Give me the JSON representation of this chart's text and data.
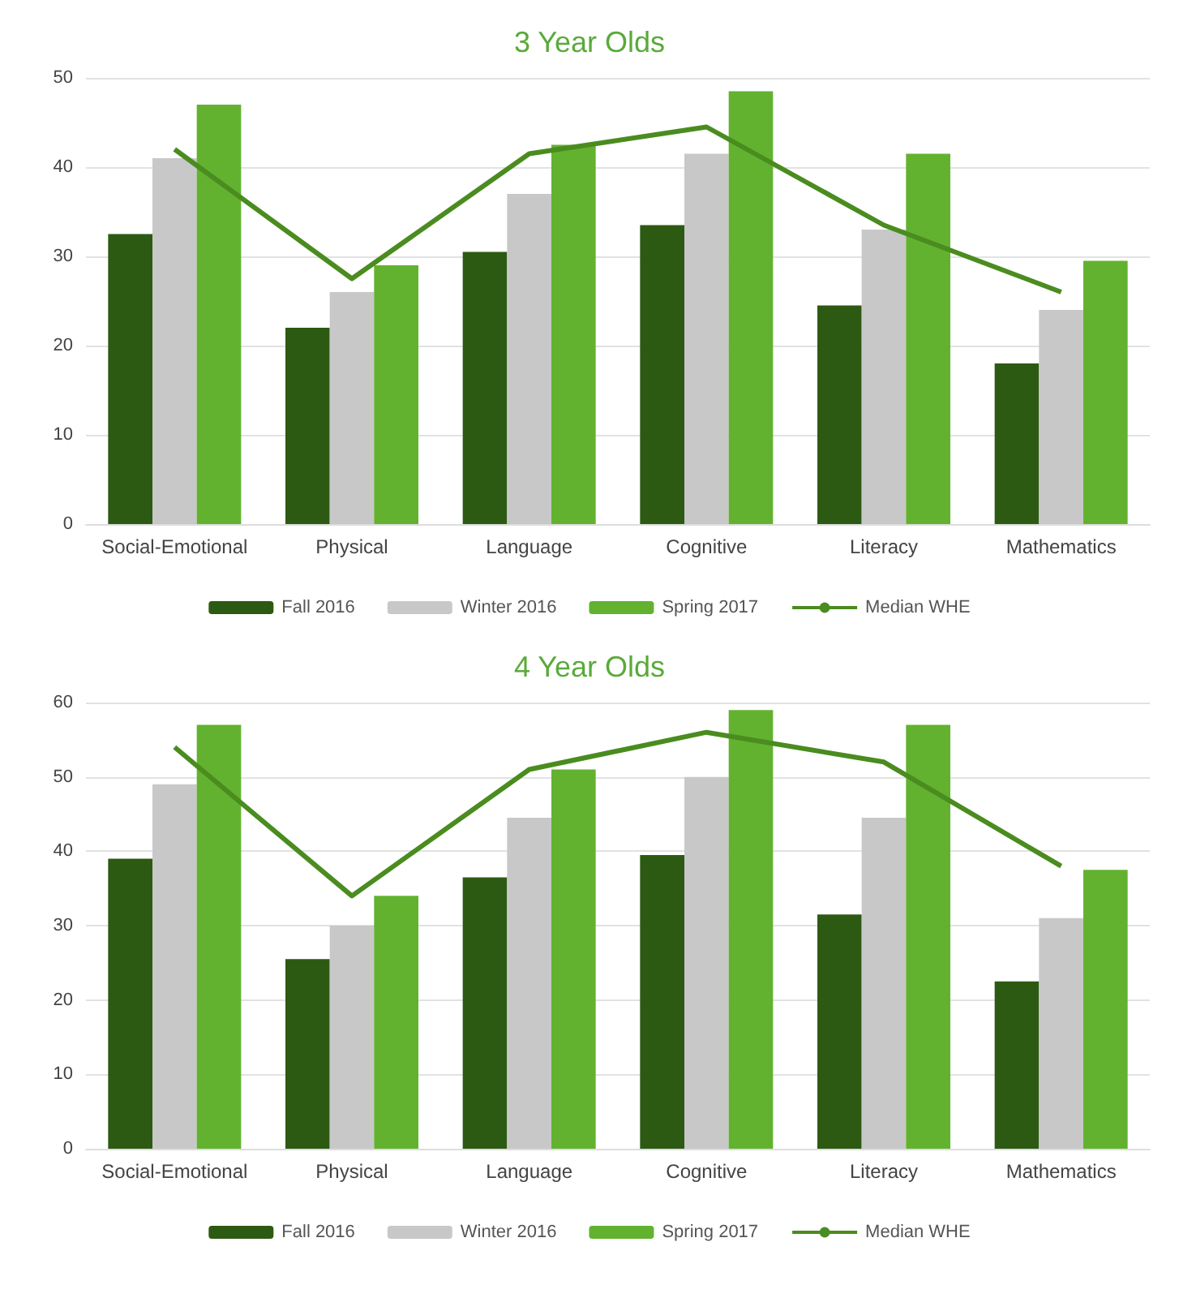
{
  "chart_data": [
    {
      "type": "bar",
      "title": "3 Year Olds",
      "categories": [
        "Social-Emotional",
        "Physical",
        "Language",
        "Cognitive",
        "Literacy",
        "Mathematics"
      ],
      "ylim": [
        0,
        50
      ],
      "yticks": [
        0,
        10,
        20,
        30,
        40,
        50
      ],
      "grid": "y",
      "legend": "bottom",
      "marker": "none",
      "series": [
        {
          "name": "Fall 2016",
          "color": "#2d5a12",
          "values": [
            32.5,
            22,
            30.5,
            33.5,
            24.5,
            18
          ]
        },
        {
          "name": "Winter 2016",
          "color": "#c8c8c8",
          "values": [
            41,
            26,
            37,
            41.5,
            33,
            24
          ]
        },
        {
          "name": "Spring 2017",
          "color": "#62b22f",
          "values": [
            47,
            29,
            42.5,
            48.5,
            41.5,
            29.5
          ]
        },
        {
          "name": "Median WHE",
          "type": "line",
          "color": "#4a8c1f",
          "values": [
            42,
            27.5,
            41.5,
            44.5,
            33.5,
            26
          ]
        }
      ]
    },
    {
      "type": "bar",
      "title": "4 Year Olds",
      "categories": [
        "Social-Emotional",
        "Physical",
        "Language",
        "Cognitive",
        "Literacy",
        "Mathematics"
      ],
      "ylim": [
        0,
        60
      ],
      "yticks": [
        0,
        10,
        20,
        30,
        40,
        50,
        60
      ],
      "grid": "y",
      "legend": "bottom",
      "marker": "none",
      "series": [
        {
          "name": "Fall 2016",
          "color": "#2d5a12",
          "values": [
            39,
            25.5,
            36.5,
            39.5,
            31.5,
            22.5
          ]
        },
        {
          "name": "Winter 2016",
          "color": "#c8c8c8",
          "values": [
            49,
            30,
            44.5,
            50,
            44.5,
            31
          ]
        },
        {
          "name": "Spring 2017",
          "color": "#62b22f",
          "values": [
            57,
            34,
            51,
            59,
            57,
            37.5
          ]
        },
        {
          "name": "Median WHE",
          "type": "line",
          "color": "#4a8c1f",
          "values": [
            54,
            34,
            51,
            56,
            52,
            38
          ]
        }
      ]
    }
  ]
}
